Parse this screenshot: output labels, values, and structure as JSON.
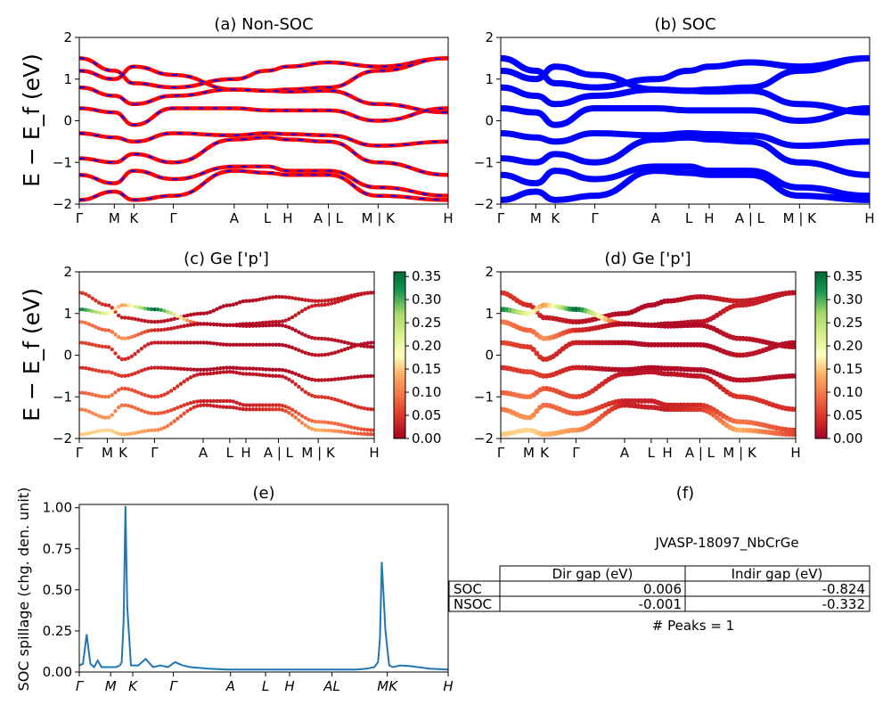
{
  "chart_data": [
    {
      "id": "a",
      "type": "line",
      "title": "(a) Non-SOC",
      "ylabel": "E − E_f (eV)",
      "ylim": [
        -2,
        2
      ],
      "yticks": [
        "2",
        "1",
        "0",
        "−1",
        "−2"
      ],
      "kpath_labels": [
        "Γ",
        "M",
        "K",
        "Γ",
        "A",
        "L",
        "H",
        "A | L",
        "M | K",
        "H"
      ],
      "kpath_positions": [
        0,
        0.095,
        0.148,
        0.255,
        0.42,
        0.51,
        0.565,
        0.675,
        0.81,
        1.0
      ],
      "series": [
        {
          "color": "#ff0000",
          "dash_color": "#0000ff"
        }
      ],
      "bands": [
        [
          1.5,
          1.2,
          0.9,
          0.8,
          1.0,
          1.2,
          1.3,
          1.4,
          1.3,
          1.5
        ],
        [
          1.2,
          1.0,
          1.3,
          1.1,
          0.75,
          0.72,
          0.75,
          0.8,
          1.2,
          1.5
        ],
        [
          0.8,
          0.6,
          0.4,
          0.6,
          0.75,
          0.72,
          0.7,
          0.72,
          0.4,
          0.2
        ],
        [
          0.3,
          0.2,
          -0.1,
          0.3,
          0.3,
          0.25,
          0.25,
          0.25,
          0.0,
          0.3
        ],
        [
          -0.3,
          -0.4,
          -0.5,
          -0.3,
          -0.35,
          -0.3,
          -0.32,
          -0.35,
          -0.6,
          -0.5
        ],
        [
          -0.9,
          -1.0,
          -0.8,
          -1.0,
          -0.45,
          -0.4,
          -0.45,
          -0.5,
          -1.0,
          -1.3
        ],
        [
          -1.3,
          -1.5,
          -1.2,
          -1.4,
          -1.1,
          -1.1,
          -1.2,
          -1.2,
          -1.6,
          -1.8
        ],
        [
          -1.9,
          -1.7,
          -1.9,
          -1.8,
          -1.2,
          -1.25,
          -1.3,
          -1.3,
          -1.8,
          -1.9
        ]
      ]
    },
    {
      "id": "b",
      "type": "line",
      "title": "(b) SOC",
      "ylim": [
        -2,
        2
      ],
      "yticks": [
        "2",
        "1",
        "0",
        "−1",
        "−2"
      ],
      "kpath_labels": [
        "Γ",
        "M",
        "K",
        "Γ",
        "A",
        "L",
        "H",
        "A | L",
        "M | K",
        "H"
      ],
      "kpath_positions": [
        0,
        0.095,
        0.148,
        0.255,
        0.42,
        0.51,
        0.565,
        0.675,
        0.81,
        1.0
      ],
      "series": [
        {
          "color": "#0000ff"
        }
      ],
      "bands": [
        [
          1.5,
          1.2,
          0.9,
          0.8,
          1.0,
          1.2,
          1.3,
          1.4,
          1.3,
          1.5
        ],
        [
          1.2,
          1.0,
          1.3,
          1.1,
          0.75,
          0.72,
          0.75,
          0.8,
          1.2,
          1.5
        ],
        [
          0.8,
          0.6,
          0.4,
          0.6,
          0.75,
          0.72,
          0.7,
          0.72,
          0.4,
          0.2
        ],
        [
          0.3,
          0.2,
          -0.1,
          0.3,
          0.3,
          0.25,
          0.25,
          0.25,
          0.0,
          0.3
        ],
        [
          -0.3,
          -0.4,
          -0.5,
          -0.3,
          -0.35,
          -0.3,
          -0.32,
          -0.35,
          -0.6,
          -0.5
        ],
        [
          -0.9,
          -1.0,
          -0.8,
          -1.0,
          -0.45,
          -0.4,
          -0.45,
          -0.5,
          -1.0,
          -1.3
        ],
        [
          -1.3,
          -1.5,
          -1.2,
          -1.4,
          -1.1,
          -1.1,
          -1.2,
          -1.2,
          -1.6,
          -1.8
        ],
        [
          -1.9,
          -1.7,
          -1.9,
          -1.8,
          -1.2,
          -1.25,
          -1.3,
          -1.3,
          -1.8,
          -1.9
        ]
      ]
    },
    {
      "id": "c",
      "type": "scatter",
      "title": "(c)  Ge ['p']",
      "ylabel": "E − E_f (eV)",
      "ylim": [
        -2,
        2
      ],
      "yticks": [
        "2",
        "1",
        "0",
        "−1",
        "−2"
      ],
      "kpath_labels": [
        "Γ",
        "M",
        "K",
        "Γ",
        "A",
        "L",
        "H",
        "A | L",
        "M | K",
        "H"
      ],
      "kpath_positions": [
        0,
        0.095,
        0.148,
        0.255,
        0.42,
        0.51,
        0.565,
        0.675,
        0.81,
        1.0
      ],
      "colorbar": {
        "min": 0.0,
        "max": 0.36,
        "ticks": [
          "0.35",
          "0.30",
          "0.25",
          "0.20",
          "0.15",
          "0.10",
          "0.05",
          "0.00"
        ],
        "colormap": "RdYlGn"
      },
      "bands": [
        [
          1.5,
          1.2,
          0.9,
          0.8,
          1.0,
          1.2,
          1.3,
          1.4,
          1.3,
          1.5
        ],
        [
          1.1,
          1.0,
          1.2,
          1.1,
          0.75,
          0.72,
          0.75,
          0.8,
          1.2,
          1.5
        ],
        [
          0.8,
          0.6,
          0.4,
          0.6,
          0.75,
          0.72,
          0.7,
          0.72,
          0.4,
          0.2
        ],
        [
          0.3,
          0.2,
          -0.1,
          0.3,
          0.3,
          0.25,
          0.25,
          0.25,
          0.0,
          0.3
        ],
        [
          -0.3,
          -0.4,
          -0.5,
          -0.3,
          -0.35,
          -0.3,
          -0.32,
          -0.35,
          -0.6,
          -0.5
        ],
        [
          -0.9,
          -1.0,
          -0.8,
          -1.0,
          -0.45,
          -0.4,
          -0.45,
          -0.5,
          -1.0,
          -1.3
        ],
        [
          -1.3,
          -1.5,
          -1.2,
          -1.4,
          -1.1,
          -1.1,
          -1.2,
          -1.2,
          -1.6,
          -1.8
        ],
        [
          -1.9,
          -1.8,
          -1.9,
          -1.8,
          -1.2,
          -1.25,
          -1.3,
          -1.3,
          -1.8,
          -1.9
        ]
      ],
      "weights": [
        [
          0.05,
          0.04,
          0.03,
          0.02,
          0.01,
          0.01,
          0.01,
          0.02,
          0.03,
          0.02
        ],
        [
          0.34,
          0.2,
          0.12,
          0.36,
          0.01,
          0.01,
          0.01,
          0.02,
          0.03,
          0.02
        ],
        [
          0.1,
          0.08,
          0.12,
          0.04,
          0.01,
          0.01,
          0.01,
          0.01,
          0.02,
          0.01
        ],
        [
          0.06,
          0.05,
          0.04,
          0.03,
          0.01,
          0.01,
          0.01,
          0.01,
          0.02,
          0.01
        ],
        [
          0.04,
          0.06,
          0.05,
          0.03,
          0.01,
          0.01,
          0.01,
          0.01,
          0.02,
          0.01
        ],
        [
          0.08,
          0.1,
          0.07,
          0.06,
          0.02,
          0.02,
          0.02,
          0.02,
          0.05,
          0.04
        ],
        [
          0.1,
          0.12,
          0.09,
          0.08,
          0.03,
          0.03,
          0.03,
          0.04,
          0.1,
          0.06
        ],
        [
          0.15,
          0.16,
          0.14,
          0.12,
          0.03,
          0.03,
          0.03,
          0.05,
          0.14,
          0.06
        ]
      ]
    },
    {
      "id": "d",
      "type": "scatter",
      "title": "(d) Ge ['p']",
      "ylim": [
        -2,
        2
      ],
      "yticks": [
        "2",
        "1",
        "0",
        "−1",
        "−2"
      ],
      "kpath_labels": [
        "Γ",
        "M",
        "K",
        "Γ",
        "A",
        "L",
        "H",
        "A | L",
        "M | K",
        "H"
      ],
      "kpath_positions": [
        0,
        0.095,
        0.148,
        0.255,
        0.42,
        0.51,
        0.565,
        0.675,
        0.81,
        1.0
      ],
      "colorbar": {
        "min": 0.0,
        "max": 0.36,
        "ticks": [
          "0.35",
          "0.30",
          "0.25",
          "0.20",
          "0.15",
          "0.10",
          "0.05",
          "0.00"
        ],
        "colormap": "RdYlGn"
      },
      "bands": [
        [
          1.5,
          1.2,
          0.9,
          0.8,
          1.0,
          1.2,
          1.3,
          1.4,
          1.3,
          1.5
        ],
        [
          1.1,
          1.0,
          1.2,
          1.1,
          0.75,
          0.72,
          0.75,
          0.8,
          1.2,
          1.5
        ],
        [
          0.8,
          0.6,
          0.4,
          0.6,
          0.75,
          0.72,
          0.7,
          0.72,
          0.4,
          0.2
        ],
        [
          0.3,
          0.2,
          -0.1,
          0.3,
          0.3,
          0.25,
          0.25,
          0.25,
          0.0,
          0.3
        ],
        [
          -0.3,
          -0.4,
          -0.5,
          -0.3,
          -0.35,
          -0.3,
          -0.32,
          -0.35,
          -0.6,
          -0.5
        ],
        [
          -0.9,
          -1.0,
          -0.8,
          -1.0,
          -0.45,
          -0.4,
          -0.45,
          -0.5,
          -1.0,
          -1.3
        ],
        [
          -1.3,
          -1.5,
          -1.2,
          -1.4,
          -1.1,
          -1.1,
          -1.2,
          -1.2,
          -1.6,
          -1.8
        ],
        [
          -1.9,
          -1.8,
          -1.9,
          -1.8,
          -1.2,
          -1.25,
          -1.3,
          -1.3,
          -1.8,
          -1.9
        ]
      ],
      "weights": [
        [
          0.05,
          0.04,
          0.03,
          0.02,
          0.01,
          0.01,
          0.01,
          0.02,
          0.03,
          0.02
        ],
        [
          0.34,
          0.2,
          0.12,
          0.36,
          0.01,
          0.01,
          0.01,
          0.02,
          0.03,
          0.02
        ],
        [
          0.1,
          0.08,
          0.12,
          0.04,
          0.01,
          0.01,
          0.01,
          0.01,
          0.02,
          0.01
        ],
        [
          0.06,
          0.05,
          0.04,
          0.03,
          0.01,
          0.01,
          0.01,
          0.01,
          0.02,
          0.01
        ],
        [
          0.04,
          0.06,
          0.05,
          0.03,
          0.01,
          0.01,
          0.01,
          0.01,
          0.02,
          0.01
        ],
        [
          0.08,
          0.1,
          0.07,
          0.06,
          0.02,
          0.02,
          0.02,
          0.02,
          0.05,
          0.04
        ],
        [
          0.1,
          0.12,
          0.09,
          0.08,
          0.03,
          0.03,
          0.03,
          0.04,
          0.1,
          0.06
        ],
        [
          0.15,
          0.16,
          0.14,
          0.12,
          0.03,
          0.03,
          0.03,
          0.05,
          0.14,
          0.06
        ]
      ]
    },
    {
      "id": "e",
      "type": "line",
      "title": "(e)",
      "ylabel": "SOC spillage (chg. den. unit)",
      "ylim": [
        0,
        1.02
      ],
      "yticks": [
        "1.00",
        "0.75",
        "0.50",
        "0.25",
        "0.00"
      ],
      "ytick_values": [
        1.0,
        0.75,
        0.5,
        0.25,
        0.0
      ],
      "kpath_labels": [
        "Γ",
        "M",
        "K",
        "Γ",
        "A",
        "L",
        "H",
        "AL",
        "MK",
        "H"
      ],
      "kpath_positions": [
        0,
        0.085,
        0.145,
        0.255,
        0.41,
        0.505,
        0.57,
        0.685,
        0.835,
        1.0
      ],
      "series": [
        {
          "color": "#1f77b4"
        }
      ],
      "x": [
        0,
        0.01,
        0.02,
        0.03,
        0.04,
        0.05,
        0.06,
        0.08,
        0.1,
        0.11,
        0.115,
        0.12,
        0.125,
        0.13,
        0.14,
        0.16,
        0.17,
        0.18,
        0.2,
        0.22,
        0.24,
        0.26,
        0.28,
        0.3,
        0.35,
        0.4,
        0.5,
        0.6,
        0.7,
        0.75,
        0.78,
        0.8,
        0.81,
        0.815,
        0.82,
        0.83,
        0.84,
        0.85,
        0.87,
        0.9,
        0.95,
        1.0
      ],
      "y": [
        0.04,
        0.05,
        0.23,
        0.05,
        0.03,
        0.07,
        0.03,
        0.03,
        0.03,
        0.04,
        0.06,
        0.3,
        1.01,
        0.4,
        0.04,
        0.04,
        0.06,
        0.08,
        0.03,
        0.04,
        0.03,
        0.06,
        0.04,
        0.03,
        0.02,
        0.015,
        0.015,
        0.015,
        0.015,
        0.015,
        0.02,
        0.03,
        0.06,
        0.2,
        0.67,
        0.25,
        0.04,
        0.03,
        0.04,
        0.035,
        0.02,
        0.015
      ]
    }
  ],
  "panel_f": {
    "title": "(f)",
    "subtitle": "JVASP-18097_NbCrGe",
    "table": {
      "headers": [
        "Dir gap (eV)",
        "Indir gap (eV)"
      ],
      "rows": [
        {
          "label": "SOC",
          "dir": "0.006",
          "indir": "-0.824"
        },
        {
          "label": "NSOC",
          "dir": "-0.001",
          "indir": "-0.332"
        }
      ]
    },
    "peaks": "# Peaks = 1"
  }
}
